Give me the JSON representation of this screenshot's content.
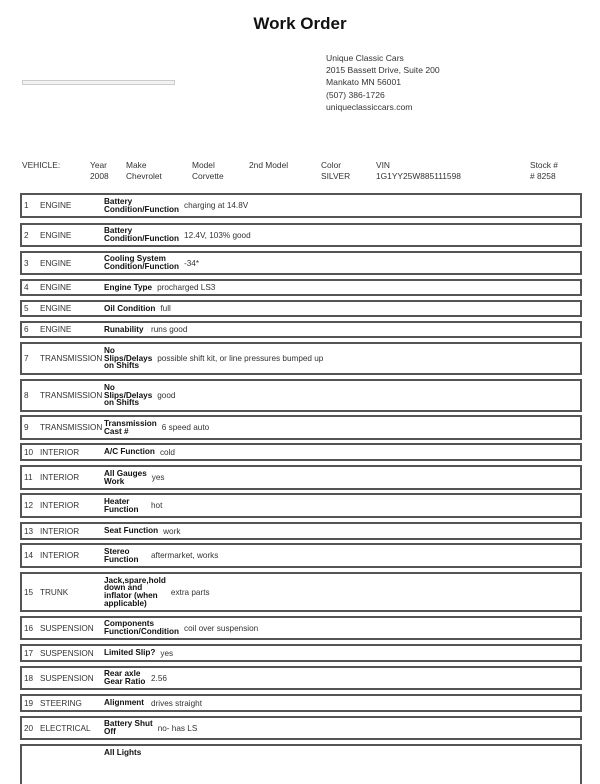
{
  "title": "Work Order",
  "company": {
    "name": "Unique Classic Cars",
    "address1": "2015 Bassett Drive, Suite 200",
    "address2": "Mankato MN 56001",
    "phone": "(507) 386-1726",
    "website": "uniqueclassiccars.com"
  },
  "vehicle": {
    "label": "VEHICLE:",
    "fields": [
      {
        "header": "Year",
        "value": "2008"
      },
      {
        "header": "Make",
        "value": "Chevrolet"
      },
      {
        "header": "Model",
        "value": "Corvette"
      },
      {
        "header": "2nd Model",
        "value": ""
      },
      {
        "header": "Color",
        "value": "SILVER"
      },
      {
        "header": "VIN",
        "value": "1G1YY25W885111598"
      },
      {
        "header": "Stock #",
        "value": "# 8258"
      }
    ]
  },
  "items": [
    {
      "num": "1",
      "category": "ENGINE",
      "label": "Battery\nCondition/Function",
      "value": "charging at 14.8V"
    },
    {
      "num": "2",
      "category": "ENGINE",
      "label": "Battery\nCondition/Function",
      "value": "12.4V, 103% good"
    },
    {
      "num": "3",
      "category": "ENGINE",
      "label": "Cooling System\nCondition/Function",
      "value": "-34*"
    },
    {
      "num": "4",
      "category": "ENGINE",
      "label": "Engine Type",
      "value": "procharged LS3"
    },
    {
      "num": "5",
      "category": "ENGINE",
      "label": "Oil Condition",
      "value": "full"
    },
    {
      "num": "6",
      "category": "ENGINE",
      "label": "Runability",
      "value": "runs good"
    },
    {
      "num": "7",
      "category": "TRANSMISSION",
      "label": "No\nSlips/Delays\non Shifts",
      "value": "possible shift kit, or line pressures bumped up"
    },
    {
      "num": "8",
      "category": "TRANSMISSION",
      "label": "No\nSlips/Delays\non Shifts",
      "value": "good"
    },
    {
      "num": "9",
      "category": "TRANSMISSION",
      "label": "Transmission\nCast #",
      "value": "6 speed auto"
    },
    {
      "num": "10",
      "category": "INTERIOR",
      "label": "A/C Function",
      "value": "cold"
    },
    {
      "num": "11",
      "category": "INTERIOR",
      "label": "All Gauges\nWork",
      "value": "yes"
    },
    {
      "num": "12",
      "category": "INTERIOR",
      "label": "Heater\nFunction",
      "value": "hot"
    },
    {
      "num": "13",
      "category": "INTERIOR",
      "label": "Seat Function",
      "value": "work"
    },
    {
      "num": "14",
      "category": "INTERIOR",
      "label": "Stereo\nFunction",
      "value": "aftermarket, works"
    },
    {
      "num": "15",
      "category": "TRUNK",
      "label": "Jack,spare,hold\ndown and\ninflator (when\napplicable)",
      "value": "extra parts"
    },
    {
      "num": "16",
      "category": "SUSPENSION",
      "label": "Components\nFunction/Condition",
      "value": "coil over suspension"
    },
    {
      "num": "17",
      "category": "SUSPENSION",
      "label": "Limited Slip?",
      "value": "yes"
    },
    {
      "num": "18",
      "category": "SUSPENSION",
      "label": "Rear axle\nGear Ratio",
      "value": "2.56"
    },
    {
      "num": "19",
      "category": "STEERING",
      "label": "Alignment",
      "value": "drives straight"
    },
    {
      "num": "20",
      "category": "ELECTRICAL",
      "label": "Battery Shut\nOff",
      "value": "no- has LS"
    },
    {
      "num": "",
      "category": "",
      "label": "All Lights",
      "value": ""
    }
  ]
}
